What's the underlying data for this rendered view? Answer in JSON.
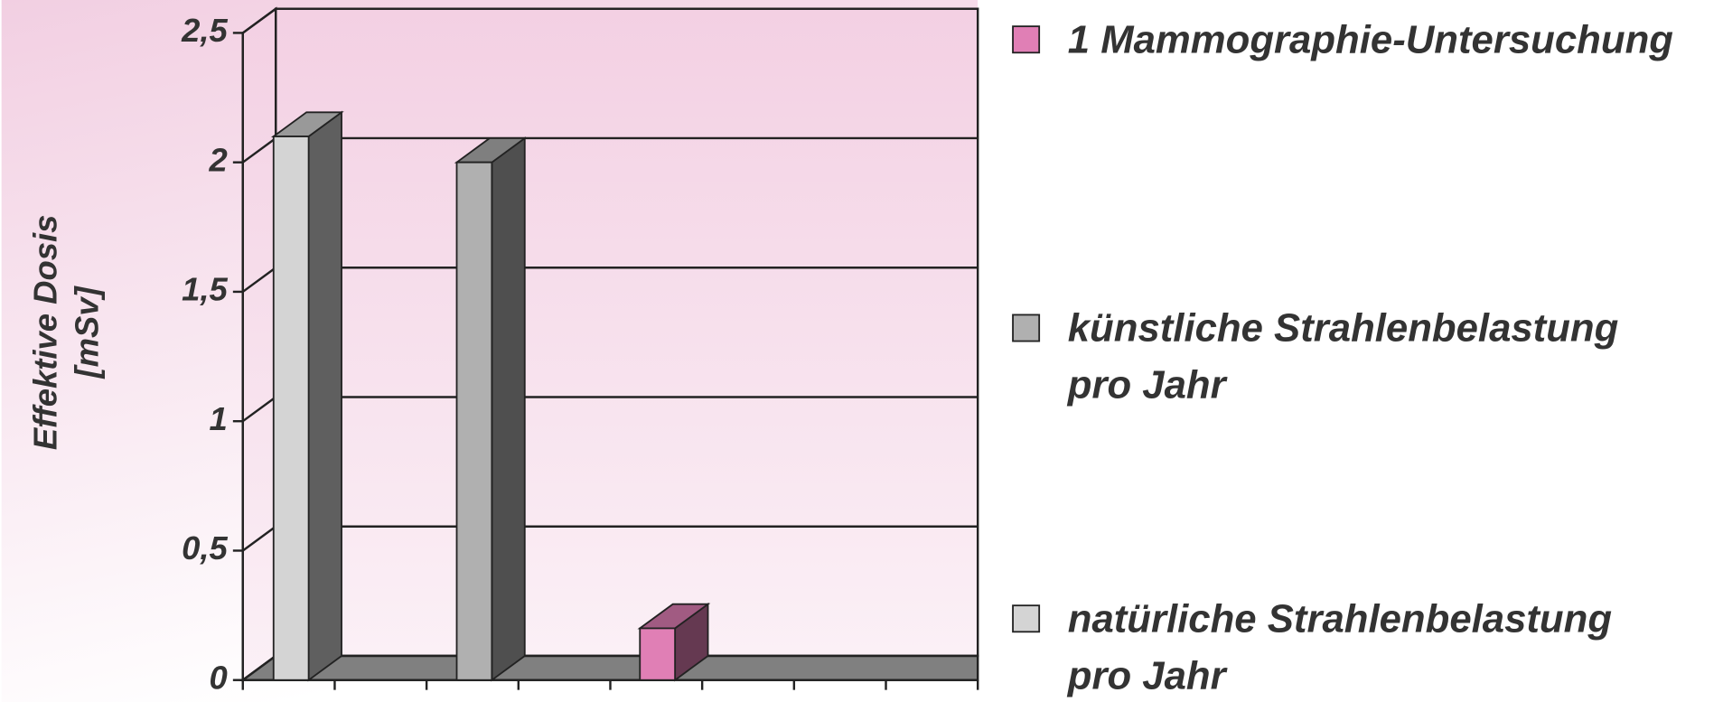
{
  "chart_data": {
    "type": "bar3d",
    "y_label": "Effektive Dosis [mSv]",
    "categories": [
      null
    ],
    "series": [
      {
        "name": "natürliche Strahlenbelastung pro Jahr",
        "color": "#d4d4d4",
        "values": [
          2.1
        ]
      },
      {
        "name": "künstliche Strahlenbelastung pro Jahr",
        "color": "#b0b0b0",
        "values": [
          2.0
        ]
      },
      {
        "name": "1 Mammographie-Untersuchung",
        "color": "#e07fb5",
        "values": [
          0.2
        ]
      }
    ],
    "ylim": [
      0,
      2.5
    ],
    "yticks": [
      0,
      {
        "value": 0.5,
        "label": "0,5"
      },
      1,
      {
        "value": 1.5,
        "label": "1,5"
      },
      2,
      {
        "value": 2.5,
        "label": "2,5"
      }
    ],
    "grid": true,
    "legend": "right"
  }
}
